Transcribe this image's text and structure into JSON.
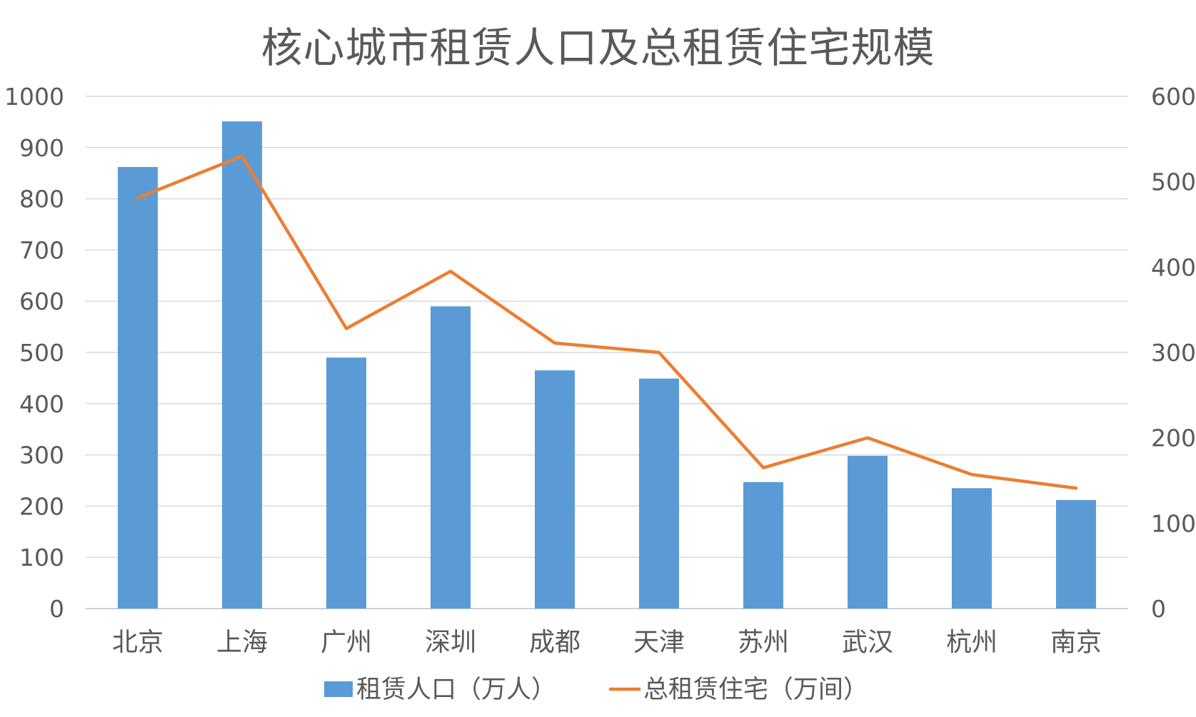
{
  "chart_data": {
    "type": "bar",
    "title": "核心城市租赁人口及总租赁住宅规模",
    "categories": [
      "北京",
      "上海",
      "广州",
      "深圳",
      "成都",
      "天津",
      "苏州",
      "武汉",
      "杭州",
      "南京"
    ],
    "series": [
      {
        "name": "租赁人口（万人）",
        "type": "bar",
        "axis": "left",
        "color": "#5B9BD5",
        "values": [
          862,
          951,
          490,
          590,
          465,
          449,
          247,
          298,
          235,
          212
        ]
      },
      {
        "name": "总租赁住宅（万间）",
        "type": "line",
        "axis": "right",
        "color": "#ED7D31",
        "values": [
          481,
          530,
          328,
          395,
          311,
          300,
          165,
          200,
          157,
          141
        ]
      }
    ],
    "ylim_left": [
      0,
      1000
    ],
    "yticks_left": [
      0,
      100,
      200,
      300,
      400,
      500,
      600,
      700,
      800,
      900,
      1000
    ],
    "ylim_right": [
      0,
      600
    ],
    "yticks_right": [
      0,
      100,
      200,
      300,
      400,
      500,
      600
    ],
    "grid": true,
    "legend_position": "bottom"
  }
}
